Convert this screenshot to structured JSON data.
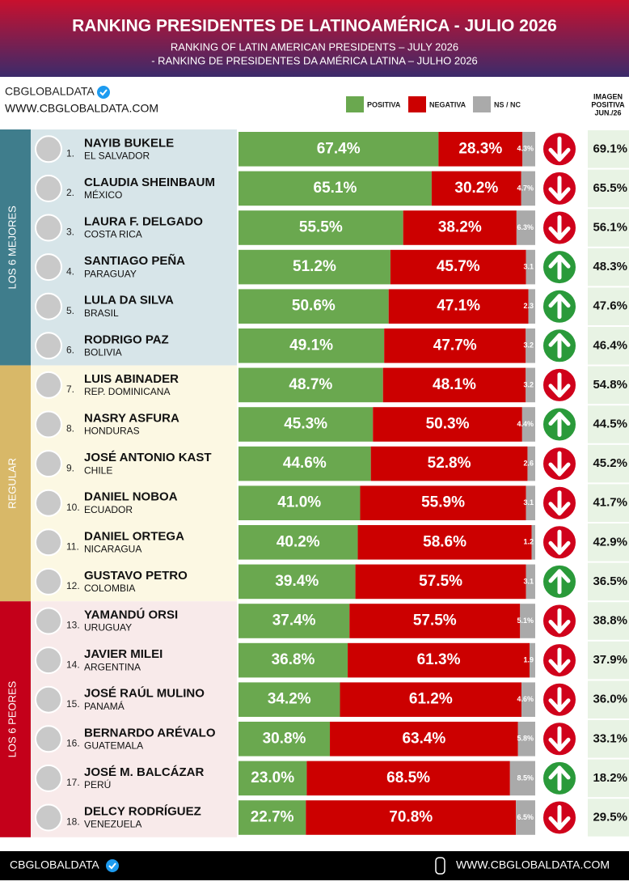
{
  "header": {
    "title": "RANKING PRESIDENTES DE LATINOAMÉRICA - JULIO 2026",
    "subtitle_1": "RANKING OF LATIN AMERICAN PRESIDENTS – JULY 2026",
    "subtitle_2": "- RANKING DE PRESIDENTES DA AMÉRICA LATINA – JULHO 2026"
  },
  "brand": {
    "name": "CBGLOBALDATA",
    "url": "WWW.CBGLOBALDATA.COM"
  },
  "footer": {
    "name": "CBGLOBALDATA",
    "url": "WWW.CBGLOBALDATA.COM"
  },
  "chart_data": {
    "type": "bar",
    "orientation": "horizontal",
    "stacked": true,
    "xlim": [
      0,
      100
    ],
    "ranks": [
      "1.",
      "2.",
      "3.",
      "4.",
      "5.",
      "6.",
      "7.",
      "8.",
      "9.",
      "10.",
      "11.",
      "12.",
      "13.",
      "14.",
      "15.",
      "16.",
      "17.",
      "18."
    ],
    "categories": [
      "NAYIB BUKELE",
      "CLAUDIA SHEINBAUM",
      "LAURA F. DELGADO",
      "SANTIAGO PEÑA",
      "LULA DA SILVA",
      "RODRIGO PAZ",
      "LUIS ABINADER",
      "NASRY ASFURA",
      "JOSÉ ANTONIO KAST",
      "DANIEL NOBOA",
      "DANIEL ORTEGA",
      "GUSTAVO PETRO",
      "YAMANDÚ ORSI",
      "JAVIER MILEI",
      "JOSÉ RAÚL MULINO",
      "BERNARDO ARÉVALO",
      "JOSÉ M. BALCÁZAR",
      "DELCY RODRÍGUEZ"
    ],
    "countries": [
      "EL SALVADOR",
      "MÉXICO",
      "COSTA RICA",
      "PARAGUAY",
      "BRASIL",
      "BOLIVIA",
      "REP. DOMINICANA",
      "HONDURAS",
      "CHILE",
      "ECUADOR",
      "NICARAGUA",
      "COLOMBIA",
      "URUGUAY",
      "ARGENTINA",
      "PANAMÁ",
      "GUATEMALA",
      "PERÚ",
      "VENEZUELA"
    ],
    "groups": [
      {
        "label": "LOS 6 MEJORES",
        "color": "#3f7d8c",
        "row_color": "#d7e5e9"
      },
      {
        "label": "REGULAR",
        "color": "#d8b868",
        "row_color": "#fcf8e3"
      },
      {
        "label": "LOS 6 PEORES",
        "color": "#c4001a",
        "row_color": "#f8eaea"
      }
    ],
    "series": [
      {
        "name": "POSITIVA",
        "color": "#6aa84f",
        "values": [
          67.4,
          65.1,
          55.5,
          51.2,
          50.6,
          49.1,
          48.7,
          45.3,
          44.6,
          41,
          40.2,
          39.4,
          37.4,
          36.8,
          34.2,
          30.8,
          23,
          22.7
        ],
        "value_labels": [
          "67.4%",
          "65.1%",
          "55.5%",
          "51.2%",
          "50.6%",
          "49.1%",
          "48.7%",
          "45.3%",
          "44.6%",
          "41.0%",
          "40.2%",
          "39.4%",
          "37.4%",
          "36.8%",
          "34.2%",
          "30.8%",
          "23.0%",
          "22.7%"
        ]
      },
      {
        "name": "NEGATIVA",
        "color": "#cc0000",
        "values": [
          28.3,
          30.2,
          38.2,
          45.7,
          47.1,
          47.7,
          48.1,
          50.3,
          52.8,
          55.9,
          58.6,
          57.5,
          57.5,
          61.3,
          61.2,
          63.4,
          68.5,
          70.8
        ],
        "value_labels": [
          "28.3%",
          "30.2%",
          "38.2%",
          "45.7%",
          "47.1%",
          "47.7%",
          "48.1%",
          "50.3%",
          "52.8%",
          "55.9%",
          "58.6%",
          "57.5%",
          "57.5%",
          "61.3%",
          "61.2%",
          "63.4%",
          "68.5%",
          "70.8%"
        ]
      },
      {
        "name": "NS / NC",
        "color": "#aaaaaa",
        "values": [
          4.3,
          4.7,
          6.3,
          3.1,
          2.3,
          3.2,
          3.2,
          4.4,
          2.6,
          3.1,
          1.2,
          3.1,
          5.1,
          1.9,
          4.6,
          5.8,
          8.5,
          6.5
        ],
        "value_labels": [
          "4.3%",
          "4.7%",
          "6.3%",
          "3.1",
          "2.3",
          "3.2",
          "3.2",
          "4.4%",
          "2.6",
          "3.1",
          "1.2",
          "3.1",
          "5.1%",
          "1.9",
          "4.6%",
          "5.8%",
          "8.5%",
          "6.5%"
        ]
      }
    ],
    "trend": [
      "down",
      "down",
      "down",
      "up",
      "up",
      "up",
      "down",
      "up",
      "down",
      "down",
      "down",
      "up",
      "down",
      "down",
      "down",
      "down",
      "up",
      "down"
    ],
    "trend_colors": {
      "up": "#2a9a3a",
      "down": "#d0021b"
    },
    "previous": {
      "name": [
        "IMAGEN",
        "POSITIVA",
        "JUN./26"
      ],
      "color": "#e8f3e4",
      "values": [
        69.1,
        65.5,
        56.1,
        48.3,
        47.6,
        46.4,
        54.8,
        44.5,
        45.2,
        41.7,
        42.9,
        36.5,
        38.8,
        37.9,
        36,
        33.1,
        18.2,
        29.5
      ],
      "value_labels": [
        "69.1%",
        "65.5%",
        "56.1%",
        "48.3%",
        "47.6%",
        "46.4%",
        "54.8%",
        "44.5%",
        "45.2%",
        "41.7%",
        "42.9%",
        "36.5%",
        "38.8%",
        "37.9%",
        "36.0%",
        "33.1%",
        "18.2%",
        "29.5%"
      ]
    }
  }
}
